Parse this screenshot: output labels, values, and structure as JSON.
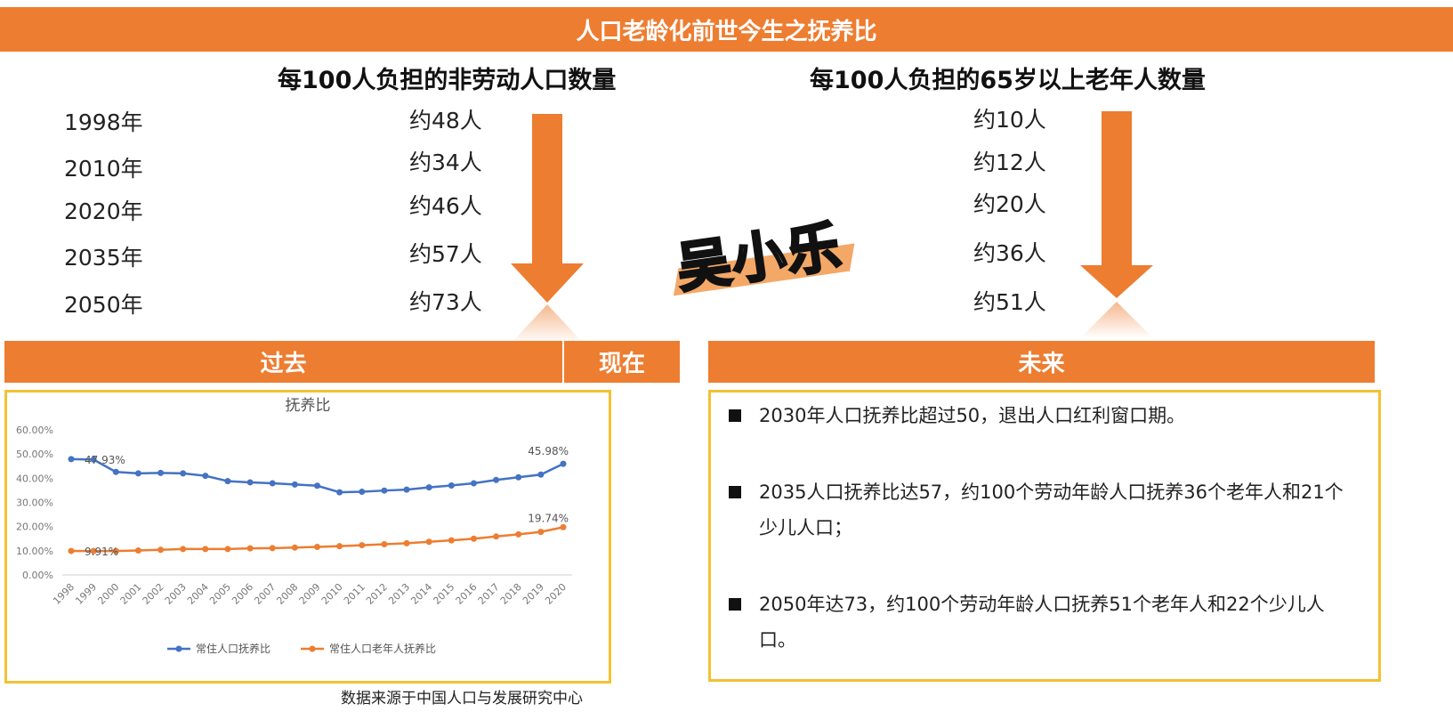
{
  "title": "人口老龄化前世今生之抚养比",
  "left_heading": "每100人负担的非劳动人口数量",
  "right_heading": "每100人负担的65岁以上老年人数量",
  "years": [
    "1998年",
    "2010年",
    "2020年",
    "2035年",
    "2050年"
  ],
  "left_values": [
    "约48人",
    "约34人",
    "约46人",
    "约57人",
    "约73人"
  ],
  "right_values": [
    "约10人",
    "约12人",
    "约20人",
    "约36人",
    "约51人"
  ],
  "watermark": "吴小乐",
  "bands": {
    "past": "过去",
    "now": "现在",
    "future": "未来"
  },
  "future_points": [
    "2030年人口抚养比超过50，退出人口红利窗口期。",
    "2035人口抚养比达57，约100个劳动年龄人口抚养36个老年人和21个少儿人口；",
    "2050年达73，约100个劳动年龄人口抚养51个老年人和22个少儿人口。"
  ],
  "source": "数据来源于中国人口与发展研究中心",
  "colors": {
    "accent": "#ed7d31",
    "border": "#f2c232",
    "series1": "#4472c4",
    "series2": "#ed7d31"
  },
  "chart_data": {
    "type": "line",
    "title": "抚养比",
    "x": [
      "1998",
      "1999",
      "2000",
      "2001",
      "2002",
      "2003",
      "2004",
      "2005",
      "2006",
      "2007",
      "2008",
      "2009",
      "2010",
      "2011",
      "2012",
      "2013",
      "2014",
      "2015",
      "2016",
      "2017",
      "2018",
      "2019",
      "2020"
    ],
    "y_ticks": [
      "0.00%",
      "10.00%",
      "20.00%",
      "30.00%",
      "40.00%",
      "50.00%",
      "60.00%"
    ],
    "ylim": [
      0,
      60
    ],
    "grid": false,
    "legend_position": "bottom",
    "series": [
      {
        "name": "常住人口抚养比",
        "values": [
          47.9,
          47.7,
          42.6,
          42.0,
          42.2,
          42.0,
          41.0,
          38.8,
          38.3,
          37.9,
          37.4,
          36.9,
          34.2,
          34.4,
          34.9,
          35.3,
          36.2,
          37.0,
          37.9,
          39.3,
          40.4,
          41.5,
          45.98
        ],
        "first_label": "47.93%",
        "last_label": "45.98%"
      },
      {
        "name": "常住人口老年人抚养比",
        "values": [
          9.91,
          9.9,
          9.9,
          10.1,
          10.4,
          10.7,
          10.7,
          10.7,
          11.0,
          11.1,
          11.3,
          11.6,
          11.9,
          12.3,
          12.7,
          13.1,
          13.7,
          14.3,
          15.0,
          15.9,
          16.8,
          17.8,
          19.74
        ],
        "first_label": "9.91%",
        "last_label": "19.74%"
      }
    ]
  }
}
